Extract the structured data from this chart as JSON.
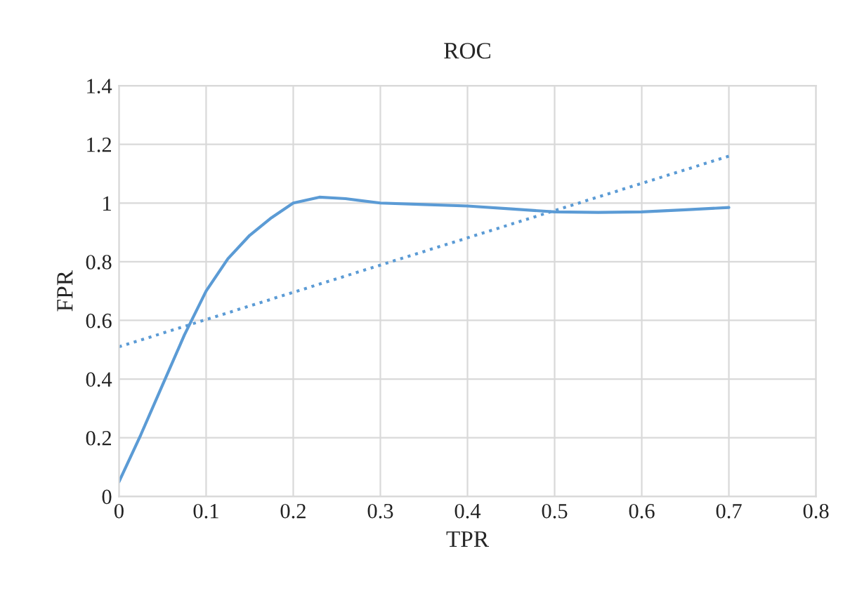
{
  "chart_data": {
    "type": "line",
    "title": "ROC",
    "xlabel": "TPR",
    "ylabel": "FPR",
    "series": [
      {
        "color": "#5b9bd5",
        "line_style": "solid",
        "x": [
          0,
          0.025,
          0.05,
          0.075,
          0.1,
          0.125,
          0.15,
          0.175,
          0.2,
          0.23,
          0.26,
          0.3,
          0.35,
          0.4,
          0.45,
          0.5,
          0.55,
          0.6,
          0.65,
          0.7
        ],
        "values": [
          0.05,
          0.21,
          0.38,
          0.55,
          0.7,
          0.81,
          0.89,
          0.95,
          1.0,
          1.02,
          1.015,
          1.0,
          0.995,
          0.99,
          0.98,
          0.97,
          0.968,
          0.97,
          0.977,
          0.985
        ]
      },
      {
        "color": "#5b9bd5",
        "line_style": "dotted",
        "x": [
          0,
          0.7
        ],
        "values": [
          0.51,
          1.16
        ]
      }
    ],
    "xlim": [
      0,
      0.8
    ],
    "xticks": [
      0,
      0.1,
      0.2,
      0.3,
      0.4,
      0.5,
      0.6,
      0.7,
      0.8
    ],
    "ylim": [
      0,
      1.4
    ],
    "yticks": [
      0,
      0.2,
      0.4,
      0.6,
      0.8,
      1,
      1.2,
      1.4
    ],
    "grid": true,
    "legend": false
  }
}
